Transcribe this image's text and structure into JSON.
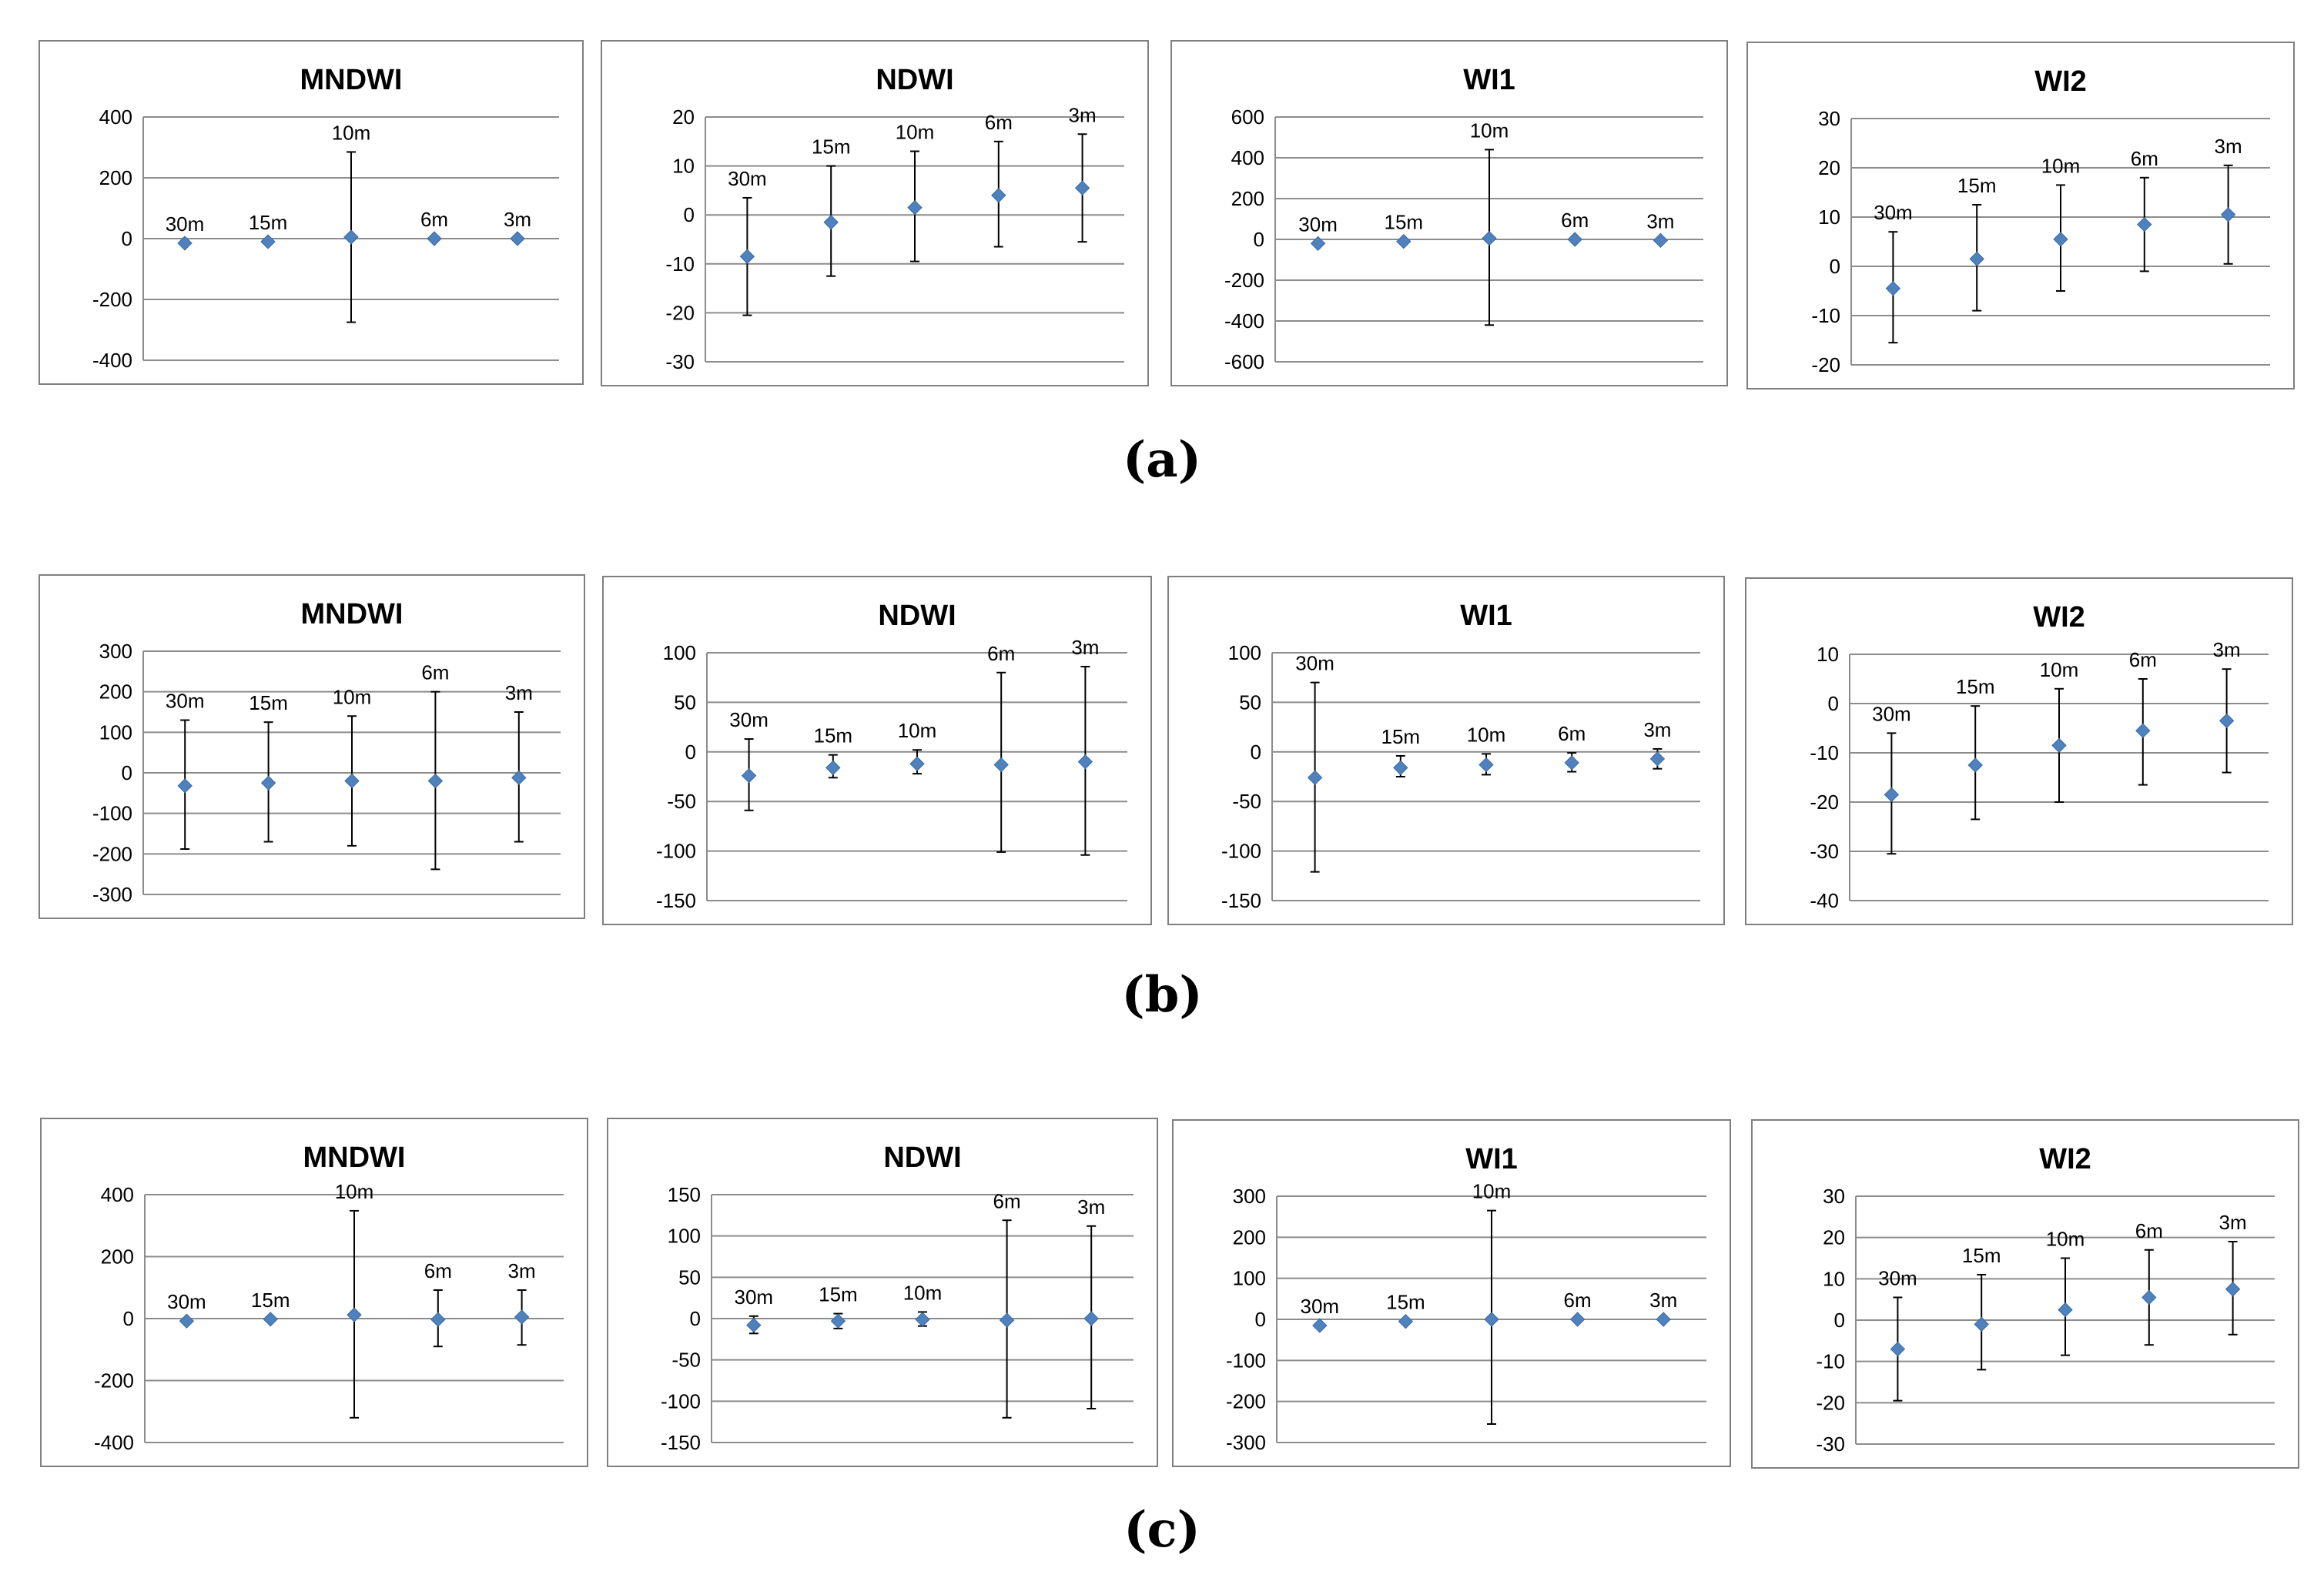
{
  "panels": [
    {
      "label": "(a)"
    },
    {
      "label": "(b)"
    },
    {
      "label": "(c)"
    }
  ],
  "colors": {
    "marker": "#4f81bd",
    "errorbar": "#000000",
    "grid": "#8c8c8c",
    "frame": "#7f7f7f"
  },
  "chart_data": [
    {
      "panel": "a",
      "type": "scatter",
      "title": "MNDWI",
      "categories": [
        "30m",
        "15m",
        "10m",
        "6m",
        "3m"
      ],
      "values": [
        -15,
        -10,
        5,
        0,
        0
      ],
      "err_low": [
        -15,
        -10,
        -275,
        0,
        0
      ],
      "err_high": [
        -15,
        -10,
        285,
        0,
        0
      ],
      "ylim": [
        -400,
        400
      ],
      "yticks": [
        -400,
        -200,
        0,
        200,
        400
      ],
      "grid": true
    },
    {
      "panel": "a",
      "type": "scatter",
      "title": "NDWI",
      "categories": [
        "30m",
        "15m",
        "10m",
        "6m",
        "3m"
      ],
      "values": [
        -8.5,
        -1.5,
        1.5,
        4,
        5.5
      ],
      "err_low": [
        -20.5,
        -12.5,
        -9.5,
        -6.5,
        -5.5
      ],
      "err_high": [
        3.5,
        10,
        13,
        15,
        16.5
      ],
      "ylim": [
        -30,
        20
      ],
      "yticks": [
        -30,
        -20,
        -10,
        0,
        10,
        20
      ],
      "grid": true
    },
    {
      "panel": "a",
      "type": "scatter",
      "title": "WI1",
      "categories": [
        "30m",
        "15m",
        "10m",
        "6m",
        "3m"
      ],
      "values": [
        -20,
        -10,
        5,
        0,
        -5
      ],
      "err_low": [
        -20,
        -10,
        -420,
        0,
        -5
      ],
      "err_high": [
        -20,
        -10,
        440,
        0,
        -5
      ],
      "ylim": [
        -600,
        600
      ],
      "yticks": [
        -600,
        -400,
        -200,
        0,
        200,
        400,
        600
      ],
      "grid": true
    },
    {
      "panel": "a",
      "type": "scatter",
      "title": "WI2",
      "categories": [
        "30m",
        "15m",
        "10m",
        "6m",
        "3m"
      ],
      "values": [
        -4.5,
        1.5,
        5.5,
        8.5,
        10.5
      ],
      "err_low": [
        -15.5,
        -9,
        -5,
        -1,
        0.5
      ],
      "err_high": [
        7,
        12.5,
        16.5,
        18,
        20.5
      ],
      "ylim": [
        -20,
        30
      ],
      "yticks": [
        -20,
        -10,
        0,
        10,
        20,
        30
      ],
      "grid": true
    },
    {
      "panel": "b",
      "type": "scatter",
      "title": "MNDWI",
      "categories": [
        "30m",
        "15m",
        "10m",
        "6m",
        "3m"
      ],
      "values": [
        -32,
        -25,
        -20,
        -20,
        -12
      ],
      "err_low": [
        -188,
        -170,
        -180,
        -238,
        -170
      ],
      "err_high": [
        130,
        125,
        140,
        200,
        150
      ],
      "ylim": [
        -300,
        300
      ],
      "yticks": [
        -300,
        -200,
        -100,
        0,
        100,
        200,
        300
      ],
      "grid": true
    },
    {
      "panel": "b",
      "type": "scatter",
      "title": "NDWI",
      "categories": [
        "30m",
        "15m",
        "10m",
        "6m",
        "3m"
      ],
      "values": [
        -24,
        -16,
        -12,
        -13,
        -10
      ],
      "err_low": [
        -59,
        -26,
        -22,
        -101,
        -104
      ],
      "err_high": [
        13,
        -3,
        2,
        80,
        86
      ],
      "ylim": [
        -150,
        100
      ],
      "yticks": [
        -150,
        -100,
        -50,
        0,
        50,
        100
      ],
      "grid": true
    },
    {
      "panel": "b",
      "type": "scatter",
      "title": "WI1",
      "categories": [
        "30m",
        "15m",
        "10m",
        "6m",
        "3m"
      ],
      "values": [
        -26,
        -16,
        -13,
        -11,
        -7
      ],
      "err_low": [
        -121,
        -25,
        -23,
        -20,
        -17
      ],
      "err_high": [
        70,
        -4,
        -2,
        -1,
        3
      ],
      "ylim": [
        -150,
        100
      ],
      "yticks": [
        -150,
        -100,
        -50,
        0,
        50,
        100
      ],
      "grid": true
    },
    {
      "panel": "b",
      "type": "scatter",
      "title": "WI2",
      "categories": [
        "30m",
        "15m",
        "10m",
        "6m",
        "3m"
      ],
      "values": [
        -18.5,
        -12.5,
        -8.5,
        -5.5,
        -3.5
      ],
      "err_low": [
        -30.5,
        -23.5,
        -20,
        -16.5,
        -14
      ],
      "err_high": [
        -6,
        -0.5,
        3,
        5,
        7
      ],
      "ylim": [
        -40,
        10
      ],
      "yticks": [
        -40,
        -30,
        -20,
        -10,
        0,
        10
      ],
      "grid": true
    },
    {
      "panel": "c",
      "type": "scatter",
      "title": "MNDWI",
      "categories": [
        "30m",
        "15m",
        "10m",
        "6m",
        "3m"
      ],
      "values": [
        -8,
        -2,
        12,
        -3,
        5
      ],
      "err_low": [
        -8,
        -2,
        -320,
        -90,
        -85
      ],
      "err_high": [
        -8,
        -2,
        348,
        92,
        92
      ],
      "ylim": [
        -400,
        400
      ],
      "yticks": [
        -400,
        -200,
        0,
        200,
        400
      ],
      "grid": true
    },
    {
      "panel": "c",
      "type": "scatter",
      "title": "NDWI",
      "categories": [
        "30m",
        "15m",
        "10m",
        "6m",
        "3m"
      ],
      "values": [
        -8,
        -3,
        -1,
        -2,
        0
      ],
      "err_low": [
        -18,
        -12,
        -9,
        -120,
        -109
      ],
      "err_high": [
        3,
        6,
        8,
        119,
        112
      ],
      "ylim": [
        -150,
        150
      ],
      "yticks": [
        -150,
        -100,
        -50,
        0,
        50,
        100,
        150
      ],
      "grid": true
    },
    {
      "panel": "c",
      "type": "scatter",
      "title": "WI1",
      "categories": [
        "30m",
        "15m",
        "10m",
        "6m",
        "3m"
      ],
      "values": [
        -15,
        -5,
        0,
        0,
        0
      ],
      "err_low": [
        -15,
        -5,
        -255,
        0,
        0
      ],
      "err_high": [
        -15,
        -5,
        265,
        0,
        0
      ],
      "ylim": [
        -300,
        300
      ],
      "yticks": [
        -300,
        -200,
        -100,
        0,
        100,
        200,
        300
      ],
      "grid": true
    },
    {
      "panel": "c",
      "type": "scatter",
      "title": "WI2",
      "categories": [
        "30m",
        "15m",
        "10m",
        "6m",
        "3m"
      ],
      "values": [
        -7,
        -1,
        2.5,
        5.5,
        7.5
      ],
      "err_low": [
        -19.5,
        -12,
        -8.5,
        -6,
        -3.5
      ],
      "err_high": [
        5.5,
        11,
        15,
        17,
        19
      ],
      "ylim": [
        -30,
        30
      ],
      "yticks": [
        -30,
        -20,
        -10,
        0,
        10,
        20,
        30
      ],
      "grid": true
    }
  ]
}
